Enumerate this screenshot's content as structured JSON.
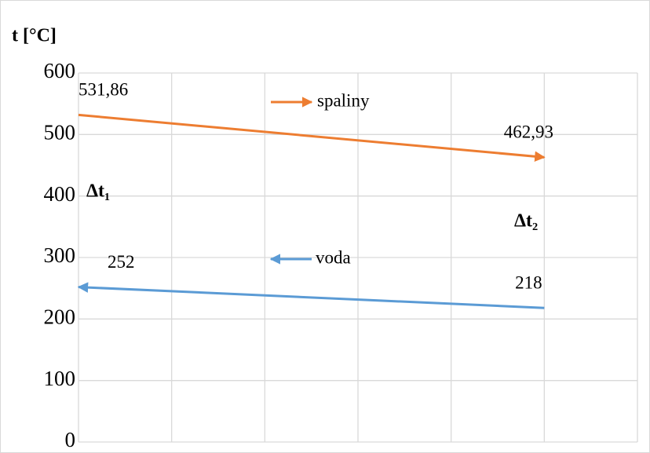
{
  "chart_data": {
    "type": "line",
    "y_label": "t [°C]",
    "x": [
      0,
      5
    ],
    "xlim": [
      0,
      6
    ],
    "xticks": [
      0,
      1,
      2,
      3,
      4,
      5,
      6
    ],
    "ylim": [
      0,
      600
    ],
    "yticks": [
      0,
      100,
      200,
      300,
      400,
      500,
      600
    ],
    "grid": true,
    "series": [
      {
        "name": "spaliny",
        "color": "#ed7d31",
        "direction": "right",
        "values": [
          531.86,
          462.93
        ],
        "value_labels": [
          "531,86",
          "462,93"
        ]
      },
      {
        "name": "voda",
        "color": "#5b9bd5",
        "direction": "left",
        "values": [
          252,
          218
        ],
        "value_labels": [
          "252",
          "218"
        ]
      }
    ],
    "annotations": [
      "Δt₁",
      "Δt₂"
    ]
  }
}
